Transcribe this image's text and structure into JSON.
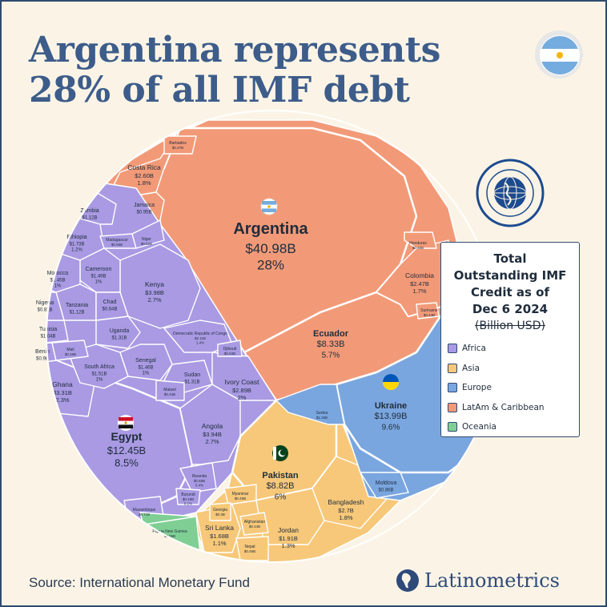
{
  "header": {
    "title_line1": "Argentina represents",
    "title_line2": "28% of all IMF debt"
  },
  "legend": {
    "title_line1": "Total",
    "title_line2": "Outstanding IMF",
    "title_line3": "Credit as of",
    "title_line4": "Dec 6 2024",
    "subtitle": "(Billion USD)",
    "items": [
      {
        "label": "Africa",
        "color": "#a99ae3"
      },
      {
        "label": "Asia",
        "color": "#f7c879"
      },
      {
        "label": "Europe",
        "color": "#7aa6df"
      },
      {
        "label": "LatAm & Caribbean",
        "color": "#f29a78"
      },
      {
        "label": "Oceania",
        "color": "#7fcf95"
      }
    ]
  },
  "footer": {
    "source": "Source: International Monetary Fund",
    "brand": "Latinometrics"
  },
  "colors": {
    "title": "#3d5c8a",
    "background": "#fbf4e6",
    "africa": "#a99ae3",
    "asia": "#f7c879",
    "europe": "#7aa6df",
    "latam": "#f29a78",
    "oceania": "#7fcf95",
    "cell_border": "#ffffff"
  },
  "icons": [
    "argentina-flag-icon",
    "imf-seal-icon",
    "egypt-flag-icon",
    "pakistan-flag-icon",
    "ukraine-flag-icon",
    "latinometrics-logo-icon"
  ],
  "chart_data": {
    "type": "voronoi-treemap",
    "unit": "Billion USD",
    "region_order": [
      "LatAm & Caribbean",
      "Africa",
      "Asia",
      "Europe",
      "Oceania"
    ],
    "cells": [
      {
        "name": "Argentina",
        "value_label": "$40.98B",
        "share_label": "28%",
        "value": 40.98,
        "share": 28,
        "region": "LatAm & Caribbean",
        "flag": "argentina"
      },
      {
        "name": "Ecuador",
        "value_label": "$8.33B",
        "share_label": "5.7%",
        "value": 8.33,
        "share": 5.7,
        "region": "LatAm & Caribbean"
      },
      {
        "name": "Costa Rica",
        "value_label": "$2.60B",
        "share_label": "1.8%",
        "value": 2.6,
        "share": 1.8,
        "region": "LatAm & Caribbean"
      },
      {
        "name": "Colombia",
        "value_label": "$2.47B",
        "share_label": "1.7%",
        "value": 2.47,
        "share": 1.7,
        "region": "LatAm & Caribbean"
      },
      {
        "name": "Jamaica",
        "value_label": "$0.95B",
        "share_label": "",
        "value": 0.95,
        "region": "LatAm & Caribbean"
      },
      {
        "name": "Honduras",
        "value_label": "$0.45B",
        "share_label": "",
        "value": 0.45,
        "region": "LatAm & Caribbean"
      },
      {
        "name": "Suriname",
        "value_label": "$0.44B",
        "share_label": "",
        "value": 0.44,
        "region": "LatAm & Caribbean"
      },
      {
        "name": "Barbados",
        "value_label": "$0.37B",
        "share_label": "",
        "value": 0.37,
        "region": "LatAm & Caribbean"
      },
      {
        "name": "Egypt",
        "value_label": "$12.45B",
        "share_label": "8.5%",
        "value": 12.45,
        "share": 8.5,
        "region": "Africa",
        "flag": "egypt"
      },
      {
        "name": "Kenya",
        "value_label": "$3.98B",
        "share_label": "2.7%",
        "value": 3.98,
        "share": 2.7,
        "region": "Africa"
      },
      {
        "name": "Angola",
        "value_label": "$3.94B",
        "share_label": "2.7%",
        "value": 3.94,
        "share": 2.7,
        "region": "Africa"
      },
      {
        "name": "Ghana",
        "value_label": "$3.31B",
        "share_label": "2.3%",
        "value": 3.31,
        "share": 2.3,
        "region": "Africa"
      },
      {
        "name": "Ivory Coast",
        "value_label": "$2.89B",
        "share_label": "2%",
        "value": 2.89,
        "share": 2,
        "region": "Africa"
      },
      {
        "name": "Democratic Republic of Congo",
        "value_label": "$2.11B",
        "share_label": "1.4%",
        "value": 2.11,
        "share": 1.4,
        "region": "Africa"
      },
      {
        "name": "Ethiopia",
        "value_label": "$1.73B",
        "share_label": "1.2%",
        "value": 1.73,
        "share": 1.2,
        "region": "Africa"
      },
      {
        "name": "South Africa",
        "value_label": "$1.51B",
        "share_label": "1%",
        "value": 1.51,
        "share": 1,
        "region": "Africa"
      },
      {
        "name": "Cameroon",
        "value_label": "$1.49B",
        "share_label": "1%",
        "value": 1.49,
        "share": 1,
        "region": "Africa"
      },
      {
        "name": "Senegal",
        "value_label": "$1.46B",
        "share_label": "1%",
        "value": 1.46,
        "share": 1,
        "region": "Africa"
      },
      {
        "name": "Morocco",
        "value_label": "$1.45B",
        "share_label": "1%",
        "value": 1.45,
        "share": 1,
        "region": "Africa"
      },
      {
        "name": "Uganda",
        "value_label": "$1.31B",
        "share_label": "",
        "value": 1.31,
        "region": "Africa"
      },
      {
        "name": "Sudan",
        "value_label": "$1.31B",
        "share_label": "",
        "value": 1.31,
        "region": "Africa"
      },
      {
        "name": "Zambia",
        "value_label": "$1.12B",
        "share_label": "",
        "value": 1.12,
        "region": "Africa"
      },
      {
        "name": "Tanzania",
        "value_label": "$1.12B",
        "share_label": "",
        "value": 1.12,
        "region": "Africa"
      },
      {
        "name": "Tunisia",
        "value_label": "$1.04B",
        "share_label": "",
        "value": 1.04,
        "region": "Africa"
      },
      {
        "name": "Benin",
        "value_label": "$0.9B",
        "share_label": "",
        "value": 0.9,
        "region": "Africa"
      },
      {
        "name": "Nigeria",
        "value_label": "$0.82B",
        "share_label": "",
        "value": 0.82,
        "region": "Africa"
      },
      {
        "name": "Chad",
        "value_label": "$0.64B",
        "share_label": "",
        "value": 0.64,
        "region": "Africa"
      },
      {
        "name": "Rwanda",
        "value_label": "$0.65B",
        "share_label": "0.4%",
        "value": 0.65,
        "share": 0.4,
        "region": "Africa"
      },
      {
        "name": "Madagascar",
        "value_label": "$0.55B",
        "share_label": "",
        "value": 0.55,
        "region": "Africa"
      },
      {
        "name": "Niger",
        "value_label": "$0.52B",
        "share_label": "",
        "value": 0.52,
        "region": "Africa"
      },
      {
        "name": "Mali",
        "value_label": "$0.45B",
        "share_label": "",
        "value": 0.45,
        "region": "Africa"
      },
      {
        "name": "Malawi",
        "value_label": "$0.43B",
        "share_label": "",
        "value": 0.43,
        "region": "Africa"
      },
      {
        "name": "Djibouti",
        "value_label": "$0.04B",
        "share_label": "",
        "value": 0.04,
        "region": "Africa"
      },
      {
        "name": "Burundi",
        "value_label": "$0.19B",
        "share_label": "0.1%",
        "value": 0.19,
        "share": 0.1,
        "region": "Africa"
      },
      {
        "name": "Mozambique",
        "value_label": "$0.71B",
        "share_label": "",
        "value": 0.71,
        "region": "Africa"
      },
      {
        "name": "Pakistan",
        "value_label": "$8.82B",
        "share_label": "6%",
        "value": 8.82,
        "share": 6,
        "region": "Asia",
        "flag": "pakistan"
      },
      {
        "name": "Bangladesh",
        "value_label": "$2.7B",
        "share_label": "1.8%",
        "value": 2.7,
        "share": 1.8,
        "region": "Asia"
      },
      {
        "name": "Jordan",
        "value_label": "$1.91B",
        "share_label": "1.3%",
        "value": 1.91,
        "share": 1.3,
        "region": "Asia"
      },
      {
        "name": "Sri Lanka",
        "value_label": "$1.68B",
        "share_label": "1.1%",
        "value": 1.68,
        "share": 1.1,
        "region": "Asia"
      },
      {
        "name": "Myanmar",
        "value_label": "$0.45B",
        "share_label": "",
        "value": 0.45,
        "region": "Asia"
      },
      {
        "name": "Afghanistan",
        "value_label": "$0.44B",
        "share_label": "",
        "value": 0.44,
        "region": "Asia"
      },
      {
        "name": "Nepal",
        "value_label": "$0.46B",
        "share_label": "",
        "value": 0.46,
        "region": "Asia"
      },
      {
        "name": "Georgia",
        "value_label": "$0.3B",
        "share_label": "",
        "value": 0.3,
        "region": "Asia"
      },
      {
        "name": "Ukraine",
        "value_label": "$13.99B",
        "share_label": "9.6%",
        "value": 13.99,
        "share": 9.6,
        "region": "Europe",
        "flag": "ukraine"
      },
      {
        "name": "Serbia",
        "value_label": "$1.25B",
        "share_label": "",
        "value": 1.25,
        "region": "Europe"
      },
      {
        "name": "Moldova",
        "value_label": "$0.86B",
        "share_label": "",
        "value": 0.86,
        "region": "Europe"
      },
      {
        "name": "Papua New Guinea",
        "value_label": "$0.65B",
        "share_label": "",
        "value": 0.65,
        "region": "Oceania"
      }
    ]
  }
}
